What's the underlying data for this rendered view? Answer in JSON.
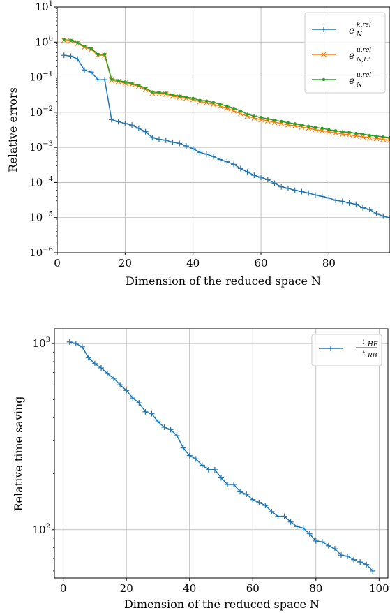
{
  "chart_data": [
    {
      "type": "line",
      "xlabel": "Dimension of the reduced space N",
      "ylabel": "Relative errors",
      "xlim": [
        0,
        98
      ],
      "ylim": [
        1e-06,
        10
      ],
      "yscale": "log",
      "grid": true,
      "legend_position": "top-right",
      "x_ticks": [
        "0",
        "20",
        "40",
        "60",
        "80"
      ],
      "y_ticks": [
        "10^-6",
        "10^-5",
        "10^-4",
        "10^-3",
        "10^-2",
        "10^-1",
        "10^0",
        "10^1"
      ],
      "x": [
        2,
        4,
        6,
        8,
        10,
        12,
        14,
        16,
        18,
        20,
        22,
        24,
        26,
        28,
        30,
        32,
        34,
        36,
        38,
        40,
        42,
        44,
        46,
        48,
        50,
        52,
        54,
        56,
        58,
        60,
        62,
        64,
        66,
        68,
        70,
        72,
        74,
        76,
        78,
        80,
        82,
        84,
        86,
        88,
        90,
        92,
        94,
        96,
        98
      ],
      "series": [
        {
          "name_main": "e",
          "name_sup": "k,rel",
          "name_sub": "N",
          "color": "#1f77b4",
          "marker": "plus",
          "values": [
            0.42,
            0.4,
            0.33,
            0.16,
            0.14,
            0.085,
            0.085,
            0.0062,
            0.0054,
            0.0048,
            0.0043,
            0.0035,
            0.0028,
            0.0019,
            0.0017,
            0.0016,
            0.0014,
            0.0013,
            0.0011,
            0.00092,
            0.00072,
            0.00064,
            0.00055,
            0.00045,
            0.00039,
            0.00033,
            0.00025,
            0.0002,
            0.00016,
            0.00014,
            0.00012,
            9.5e-05,
            7.5e-05,
            6.8e-05,
            6e-05,
            5.5e-05,
            5e-05,
            4.4e-05,
            4e-05,
            3.6e-05,
            3.1e-05,
            2.9e-05,
            2.6e-05,
            2.4e-05,
            1.9e-05,
            1.7e-05,
            1.3e-05,
            1.1e-05,
            9.8e-06
          ]
        },
        {
          "name_main": "e",
          "name_sup": "u,rel",
          "name_sub": "N,L²",
          "color": "#ff7f0e",
          "marker": "x",
          "values": [
            1.12,
            1.08,
            0.92,
            0.72,
            0.62,
            0.42,
            0.42,
            0.082,
            0.075,
            0.068,
            0.062,
            0.055,
            0.045,
            0.035,
            0.034,
            0.033,
            0.029,
            0.027,
            0.025,
            0.023,
            0.02,
            0.019,
            0.017,
            0.015,
            0.013,
            0.011,
            0.0092,
            0.0078,
            0.0069,
            0.0062,
            0.0057,
            0.0052,
            0.0048,
            0.0044,
            0.0041,
            0.0038,
            0.0035,
            0.0032,
            0.003,
            0.0028,
            0.0026,
            0.0024,
            0.0023,
            0.0021,
            0.002,
            0.0019,
            0.0018,
            0.0017,
            0.0016
          ]
        },
        {
          "name_main": "e",
          "name_sup": "u,rel",
          "name_sub": "N",
          "color": "#2ca02c",
          "marker": "dot",
          "values": [
            1.18,
            1.12,
            0.97,
            0.76,
            0.66,
            0.45,
            0.45,
            0.088,
            0.08,
            0.073,
            0.066,
            0.059,
            0.049,
            0.038,
            0.036,
            0.035,
            0.031,
            0.029,
            0.027,
            0.025,
            0.022,
            0.021,
            0.019,
            0.017,
            0.015,
            0.013,
            0.011,
            0.0088,
            0.0078,
            0.0071,
            0.0065,
            0.0059,
            0.0055,
            0.005,
            0.0047,
            0.0043,
            0.004,
            0.0037,
            0.0035,
            0.0032,
            0.003,
            0.0028,
            0.0027,
            0.0025,
            0.0024,
            0.0022,
            0.0021,
            0.002,
            0.0019
          ]
        }
      ]
    },
    {
      "type": "line",
      "xlabel": "Dimension of the reduced space N",
      "ylabel": "Relative time saving",
      "xlim": [
        -2.8,
        102.8
      ],
      "ylim": [
        55,
        1200
      ],
      "yscale": "log",
      "grid": true,
      "legend_position": "top-right",
      "x_ticks": [
        "0",
        "20",
        "40",
        "60",
        "80",
        "100"
      ],
      "y_ticks": [
        "10^2",
        "10^3"
      ],
      "x": [
        2,
        4,
        6,
        8,
        10,
        12,
        14,
        16,
        18,
        20,
        22,
        24,
        26,
        28,
        30,
        32,
        34,
        36,
        38,
        40,
        42,
        44,
        46,
        48,
        50,
        52,
        54,
        56,
        58,
        60,
        62,
        64,
        66,
        68,
        70,
        72,
        74,
        76,
        78,
        80,
        82,
        84,
        86,
        88,
        90,
        92,
        94,
        96,
        98
      ],
      "series": [
        {
          "name_num": "HF",
          "name_den": "RB",
          "color": "#1f77b4",
          "marker": "plus",
          "values": [
            1020,
            1000,
            960,
            840,
            780,
            740,
            690,
            650,
            600,
            560,
            510,
            480,
            430,
            420,
            380,
            355,
            345,
            320,
            275,
            250,
            240,
            222,
            210,
            210,
            190,
            175,
            175,
            160,
            155,
            145,
            140,
            135,
            125,
            118,
            118,
            110,
            104,
            102,
            95,
            87,
            86,
            82,
            79,
            73,
            72,
            69,
            67,
            65,
            60
          ]
        }
      ]
    }
  ]
}
